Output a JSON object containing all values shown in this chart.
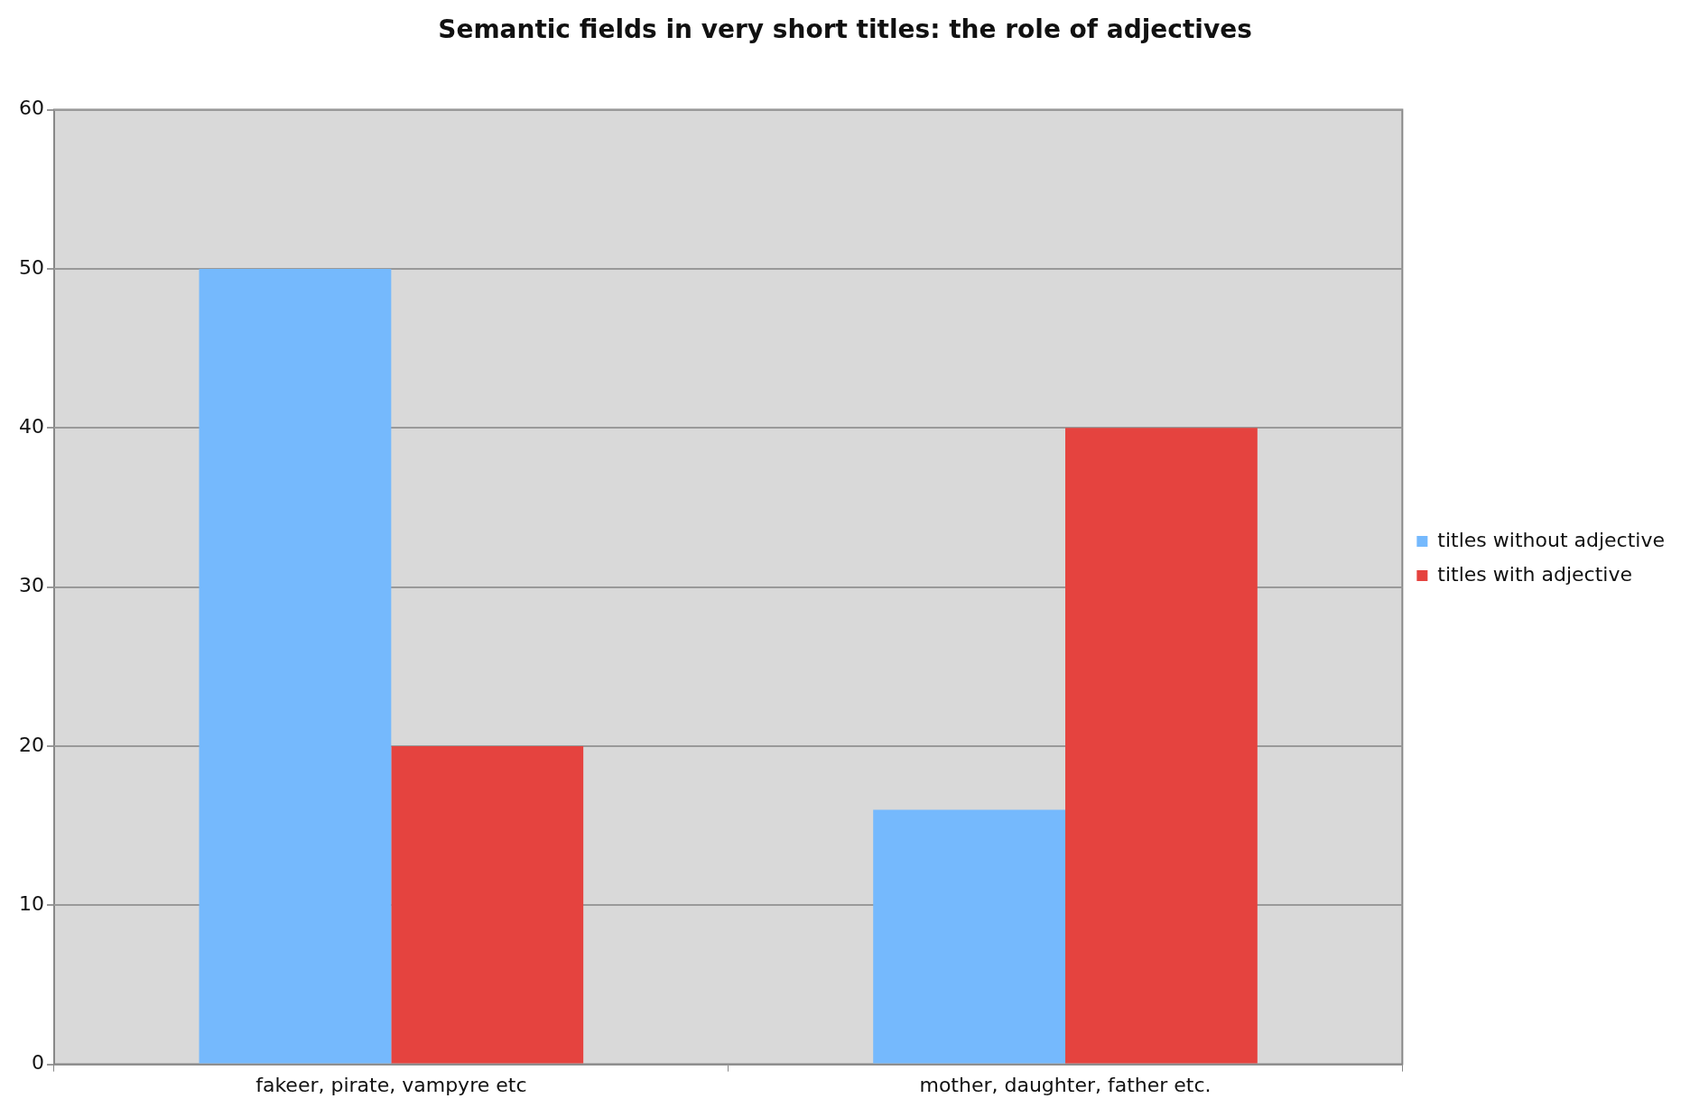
{
  "chart_data": {
    "type": "bar",
    "title": "Semantic fields in very short titles: the role of adjectives",
    "categories": [
      "fakeer, pirate, vampyre etc",
      "mother, daughter, father etc."
    ],
    "series": [
      {
        "name": "titles without adjective",
        "color": "#75b9fd",
        "values": [
          50,
          16
        ]
      },
      {
        "name": "titles with adjective",
        "color": "#e5433f",
        "values": [
          20,
          40
        ]
      }
    ],
    "ylim": [
      0,
      60
    ],
    "yticks": [
      0,
      10,
      20,
      30,
      40,
      50,
      60
    ],
    "grid": "y",
    "legend": "right"
  }
}
